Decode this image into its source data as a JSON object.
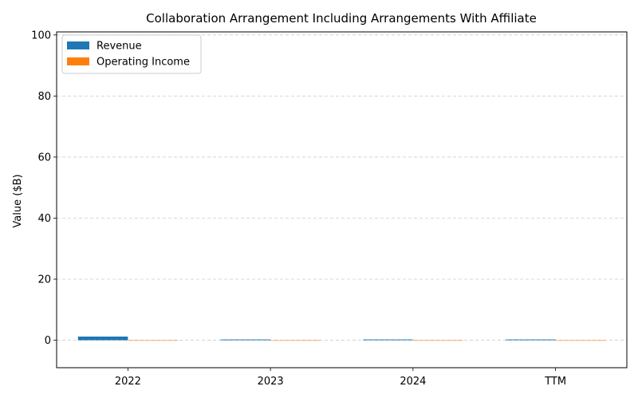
{
  "chart_data": {
    "type": "bar",
    "title": "Collaboration Arrangement Including Arrangements With Affiliate",
    "xlabel": "",
    "ylabel": "Value ($B)",
    "categories": [
      "2022",
      "2023",
      "2024",
      "TTM"
    ],
    "series": [
      {
        "name": "Revenue",
        "color": "#1f77b4",
        "values": [
          1.2,
          0.25,
          0.25,
          0.25
        ]
      },
      {
        "name": "Operating Income",
        "color": "#ff7f0e",
        "values": [
          0,
          0,
          0,
          0
        ]
      }
    ],
    "ylim": [
      -9,
      101
    ],
    "yticks": [
      0,
      20,
      40,
      60,
      80,
      100
    ],
    "grid": "y-dashed",
    "legend_position": "top-left"
  }
}
